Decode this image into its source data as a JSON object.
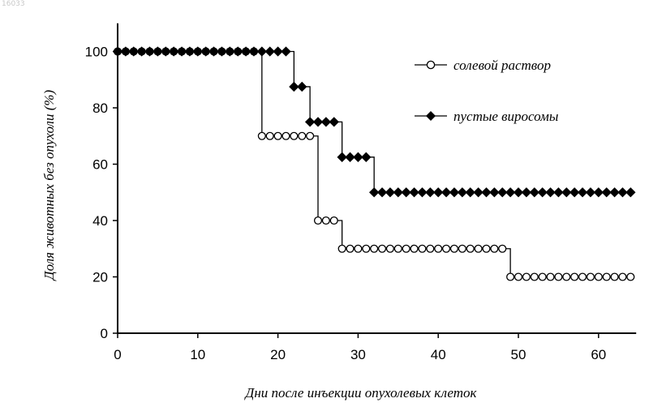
{
  "corner_id": "16033",
  "chart_data": {
    "type": "line",
    "title": "",
    "xlabel": "Дни после инъекции опухолевых клеток",
    "ylabel": "Доля животных без опухоли (%)",
    "xlim": [
      0,
      65
    ],
    "ylim": [
      0,
      110
    ],
    "xticks": [
      0,
      10,
      20,
      30,
      40,
      50,
      60
    ],
    "yticks": [
      0,
      20,
      40,
      60,
      80,
      100
    ],
    "legend_position": "top-right",
    "series": [
      {
        "name": "солевой раствор",
        "marker": "open-circle",
        "color": "#000000",
        "points": [
          [
            0,
            100
          ],
          [
            1,
            100
          ],
          [
            2,
            100
          ],
          [
            3,
            100
          ],
          [
            4,
            100
          ],
          [
            5,
            100
          ],
          [
            6,
            100
          ],
          [
            7,
            100
          ],
          [
            8,
            100
          ],
          [
            9,
            100
          ],
          [
            10,
            100
          ],
          [
            11,
            100
          ],
          [
            12,
            100
          ],
          [
            13,
            100
          ],
          [
            14,
            100
          ],
          [
            15,
            100
          ],
          [
            16,
            100
          ],
          [
            17,
            100
          ],
          [
            18,
            70
          ],
          [
            19,
            70
          ],
          [
            20,
            70
          ],
          [
            21,
            70
          ],
          [
            22,
            70
          ],
          [
            23,
            70
          ],
          [
            24,
            70
          ],
          [
            25,
            40
          ],
          [
            26,
            40
          ],
          [
            27,
            40
          ],
          [
            28,
            30
          ],
          [
            29,
            30
          ],
          [
            30,
            30
          ],
          [
            31,
            30
          ],
          [
            32,
            30
          ],
          [
            33,
            30
          ],
          [
            34,
            30
          ],
          [
            35,
            30
          ],
          [
            36,
            30
          ],
          [
            37,
            30
          ],
          [
            38,
            30
          ],
          [
            39,
            30
          ],
          [
            40,
            30
          ],
          [
            41,
            30
          ],
          [
            42,
            30
          ],
          [
            43,
            30
          ],
          [
            44,
            30
          ],
          [
            45,
            30
          ],
          [
            46,
            30
          ],
          [
            47,
            30
          ],
          [
            48,
            30
          ],
          [
            49,
            20
          ],
          [
            50,
            20
          ],
          [
            51,
            20
          ],
          [
            52,
            20
          ],
          [
            53,
            20
          ],
          [
            54,
            20
          ],
          [
            55,
            20
          ],
          [
            56,
            20
          ],
          [
            57,
            20
          ],
          [
            58,
            20
          ],
          [
            59,
            20
          ],
          [
            60,
            20
          ],
          [
            61,
            20
          ],
          [
            62,
            20
          ],
          [
            63,
            20
          ],
          [
            64,
            20
          ]
        ]
      },
      {
        "name": "пустые виросомы",
        "marker": "filled-diamond",
        "color": "#000000",
        "points": [
          [
            0,
            100
          ],
          [
            1,
            100
          ],
          [
            2,
            100
          ],
          [
            3,
            100
          ],
          [
            4,
            100
          ],
          [
            5,
            100
          ],
          [
            6,
            100
          ],
          [
            7,
            100
          ],
          [
            8,
            100
          ],
          [
            9,
            100
          ],
          [
            10,
            100
          ],
          [
            11,
            100
          ],
          [
            12,
            100
          ],
          [
            13,
            100
          ],
          [
            14,
            100
          ],
          [
            15,
            100
          ],
          [
            16,
            100
          ],
          [
            17,
            100
          ],
          [
            18,
            100
          ],
          [
            19,
            100
          ],
          [
            20,
            100
          ],
          [
            21,
            100
          ],
          [
            22,
            87.5
          ],
          [
            23,
            87.5
          ],
          [
            24,
            75
          ],
          [
            25,
            75
          ],
          [
            26,
            75
          ],
          [
            27,
            75
          ],
          [
            28,
            62.5
          ],
          [
            29,
            62.5
          ],
          [
            30,
            62.5
          ],
          [
            31,
            62.5
          ],
          [
            32,
            50
          ],
          [
            33,
            50
          ],
          [
            34,
            50
          ],
          [
            35,
            50
          ],
          [
            36,
            50
          ],
          [
            37,
            50
          ],
          [
            38,
            50
          ],
          [
            39,
            50
          ],
          [
            40,
            50
          ],
          [
            41,
            50
          ],
          [
            42,
            50
          ],
          [
            43,
            50
          ],
          [
            44,
            50
          ],
          [
            45,
            50
          ],
          [
            46,
            50
          ],
          [
            47,
            50
          ],
          [
            48,
            50
          ],
          [
            49,
            50
          ],
          [
            50,
            50
          ],
          [
            51,
            50
          ],
          [
            52,
            50
          ],
          [
            53,
            50
          ],
          [
            54,
            50
          ],
          [
            55,
            50
          ],
          [
            56,
            50
          ],
          [
            57,
            50
          ],
          [
            58,
            50
          ],
          [
            59,
            50
          ],
          [
            60,
            50
          ],
          [
            61,
            50
          ],
          [
            62,
            50
          ],
          [
            63,
            50
          ],
          [
            64,
            50
          ]
        ]
      }
    ]
  }
}
